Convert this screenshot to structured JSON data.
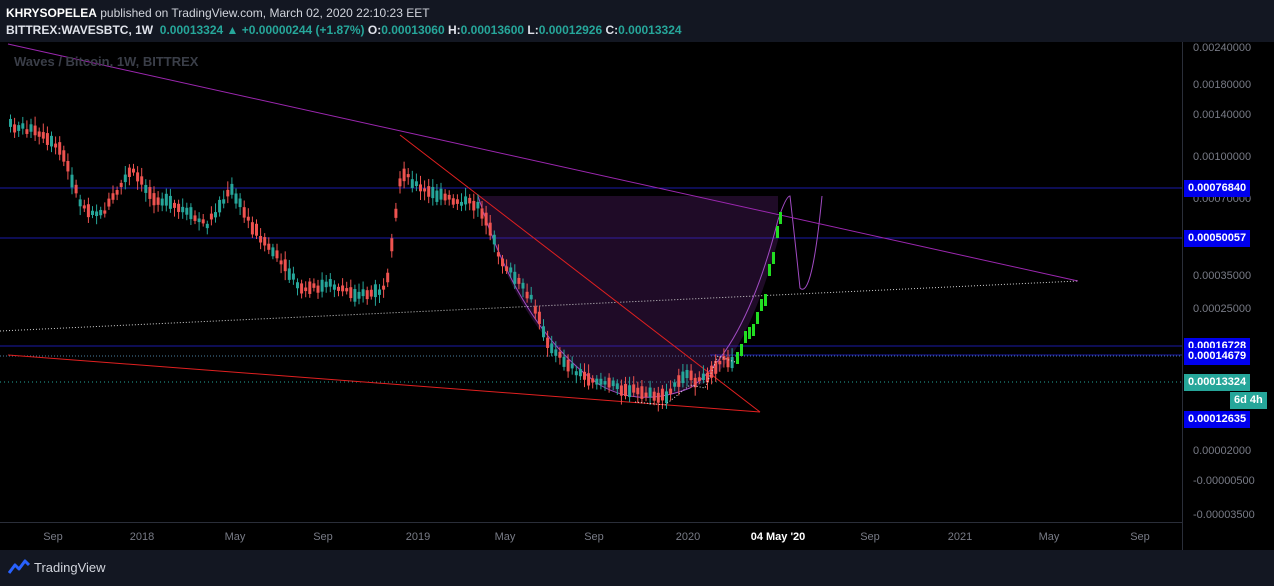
{
  "header": {
    "author": "KHRYSOPELEA",
    "published_text": " published on TradingView.com, March 02, 2020 22:10:23 EET",
    "symbol": "BITTREX:WAVESBTC, 1W",
    "last_price": "0.00013324",
    "change": "+0.00000244 (+1.87%)",
    "ohlc": {
      "o_label": "O:",
      "o": "0.00013060",
      "h_label": "H:",
      "h": "0.00013600",
      "l_label": "L:",
      "l": "0.00012926",
      "c_label": "C:",
      "c": "0.00013324"
    }
  },
  "watermark": "Waves / Bitcoin, 1W, BITTREX",
  "footer": {
    "brand": "TradingView"
  },
  "colors": {
    "background": "#000000",
    "up_candle": "#26a69a",
    "down_candle": "#ef5350",
    "projection_candle": "#22dd22",
    "trendline_purple": "#9c27b0",
    "trendline_red": "#e02020",
    "level_line": "#1a1aa8",
    "badge_blue": "#0000ee",
    "badge_teal": "#26a69a"
  },
  "chart_data": {
    "type": "candlestick",
    "title": "Waves / Bitcoin, 1W, BITTREX",
    "y_scale": "log",
    "y_ticks": [
      "0.00240000",
      "0.00180000",
      "0.00140000",
      "0.00100000",
      "0.00070000",
      "0.00035000",
      "0.00025000",
      "0.00002000",
      "-0.00000500",
      "-0.00003500"
    ],
    "x_ticks": [
      "Sep",
      "2018",
      "May",
      "Sep",
      "2019",
      "May",
      "Sep",
      "2020",
      "04 May '20",
      "Sep",
      "2021",
      "May",
      "Sep"
    ],
    "x_ticks_bold": [
      "04 May '20"
    ],
    "price_levels": [
      {
        "label": "0.00076840",
        "value": 0.0007684,
        "style": "solid"
      },
      {
        "label": "0.00050057",
        "value": 0.00050057,
        "style": "solid"
      },
      {
        "label": "0.00016728",
        "value": 0.00016728,
        "style": "solid"
      },
      {
        "label": "0.00014679",
        "value": 0.00014679,
        "style": "dotted"
      },
      {
        "label": "0.00012635",
        "value": 0.00012635,
        "style": "badge"
      }
    ],
    "current_price": {
      "label": "0.00013324",
      "value": 0.00013324,
      "countdown": "6d 4h"
    },
    "annotations": [
      "descending purple resistance trendline",
      "red falling wedge",
      "cup and handle projection"
    ]
  }
}
